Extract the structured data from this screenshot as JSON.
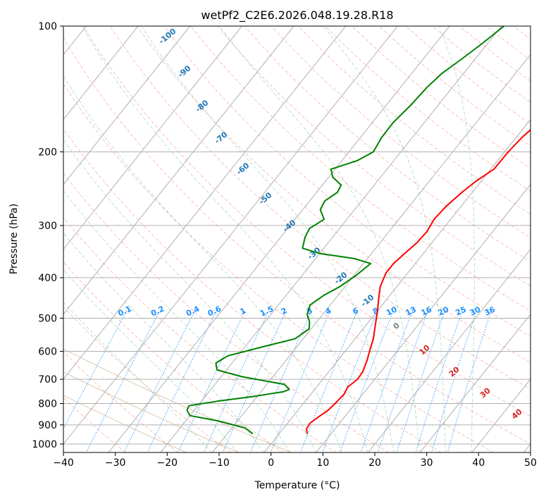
{
  "chart_data": {
    "type": "line",
    "subtype": "skew-t log-p diagram",
    "title": "wetPf2_C2E6.2026.048.19.28.R18",
    "xlabel": "Temperature (°C)",
    "ylabel": "Pressure (hPa)",
    "xlim": [
      -40,
      50
    ],
    "ylim": [
      1030,
      100
    ],
    "y_scale": "log",
    "grid": true,
    "x_ticks": [
      "−40",
      "−30",
      "−20",
      "−10",
      "0",
      "10",
      "20",
      "30",
      "40",
      "50"
    ],
    "y_ticks": [
      "100",
      "200",
      "300",
      "400",
      "500",
      "600",
      "700",
      "800",
      "900",
      "1000"
    ],
    "x_tick_values": [
      -40,
      -30,
      -20,
      -10,
      0,
      10,
      20,
      30,
      40,
      50
    ],
    "y_tick_values": [
      100,
      200,
      300,
      400,
      500,
      600,
      700,
      800,
      900,
      1000
    ],
    "series": [
      {
        "color": "#ff0000",
        "points": [
          [
            5.4,
            945
          ],
          [
            4.5,
            920
          ],
          [
            4.3,
            890
          ],
          [
            5.0,
            860
          ],
          [
            5.8,
            830
          ],
          [
            6.1,
            800
          ],
          [
            6.4,
            760
          ],
          [
            6.0,
            730
          ],
          [
            6.7,
            700
          ],
          [
            6.5,
            670
          ],
          [
            5.6,
            630
          ],
          [
            4.7,
            600
          ],
          [
            3.5,
            560
          ],
          [
            1.8,
            520
          ],
          [
            0.0,
            480
          ],
          [
            -1.6,
            450
          ],
          [
            -3.2,
            420
          ],
          [
            -4.2,
            390
          ],
          [
            -4.2,
            370
          ],
          [
            -3.6,
            350
          ],
          [
            -2.9,
            330
          ],
          [
            -2.7,
            310
          ],
          [
            -3.2,
            290
          ],
          [
            -2.9,
            270
          ],
          [
            -2.0,
            250
          ],
          [
            -1.0,
            235
          ],
          [
            0.6,
            220
          ],
          [
            0.7,
            200
          ],
          [
            1.1,
            185
          ],
          [
            2.4,
            165
          ],
          [
            3.6,
            150
          ],
          [
            4.3,
            135
          ],
          [
            4.3,
            120
          ],
          [
            4.8,
            110
          ],
          [
            6.6,
            100
          ]
        ]
      },
      {
        "color": "#008000",
        "points": [
          [
            -5.1,
            945
          ],
          [
            -7.5,
            915
          ],
          [
            -13.8,
            880
          ],
          [
            -20.0,
            855
          ],
          [
            -21.4,
            830
          ],
          [
            -21.7,
            810
          ],
          [
            -17.0,
            790
          ],
          [
            -10.9,
            770
          ],
          [
            -5.7,
            750
          ],
          [
            -4.9,
            740
          ],
          [
            -6.6,
            720
          ],
          [
            -16.0,
            690
          ],
          [
            -21.8,
            665
          ],
          [
            -23.1,
            640
          ],
          [
            -21.9,
            615
          ],
          [
            -16.5,
            585
          ],
          [
            -11.6,
            560
          ],
          [
            -10.4,
            530
          ],
          [
            -11.4,
            510
          ],
          [
            -13.0,
            490
          ],
          [
            -13.9,
            465
          ],
          [
            -12.7,
            440
          ],
          [
            -11.0,
            420
          ],
          [
            -9.6,
            395
          ],
          [
            -8.6,
            370
          ],
          [
            -12.5,
            360
          ],
          [
            -20.0,
            350
          ],
          [
            -24.1,
            340
          ],
          [
            -25.3,
            320
          ],
          [
            -25.8,
            305
          ],
          [
            -24.4,
            290
          ],
          [
            -26.6,
            275
          ],
          [
            -27.1,
            262
          ],
          [
            -26.0,
            250
          ],
          [
            -26.4,
            240
          ],
          [
            -29.2,
            230
          ],
          [
            -30.8,
            220
          ],
          [
            -27.1,
            210
          ],
          [
            -25.3,
            200
          ],
          [
            -25.9,
            185
          ],
          [
            -26.0,
            170
          ],
          [
            -25.3,
            155
          ],
          [
            -24.9,
            140
          ],
          [
            -24.2,
            130
          ],
          [
            -22.6,
            120
          ],
          [
            -21.0,
            110
          ],
          [
            -19.5,
            100
          ]
        ]
      }
    ],
    "isotherm_labels": [
      "-100",
      "-90",
      "-80",
      "-70",
      "-60",
      "-50",
      "-40",
      "-30",
      "-20",
      "-10",
      "0",
      "10",
      "20",
      "30",
      "40"
    ],
    "mixing_ratio_labels": [
      "0.1",
      "0.2",
      "0.4",
      "0.6",
      "1",
      "1.5",
      "2",
      "3",
      "4",
      "6",
      "8",
      "10",
      "13",
      "16",
      "20",
      "25",
      "30",
      "36"
    ],
    "colors": {
      "temperature": "#ff0000",
      "dewpoint": "#008000",
      "grid": "#b0b0b0",
      "isotherm_label": "#1f77b4",
      "warm_isotherm_label": "#d62728",
      "zero_isotherm_label": "#7f7f7f",
      "mixing_ratio": "#1e90ff",
      "dry_adiabat": "#fa8072",
      "moist_adiabat": "#3cb371",
      "adiabat_curve": "#d2b48c"
    }
  }
}
